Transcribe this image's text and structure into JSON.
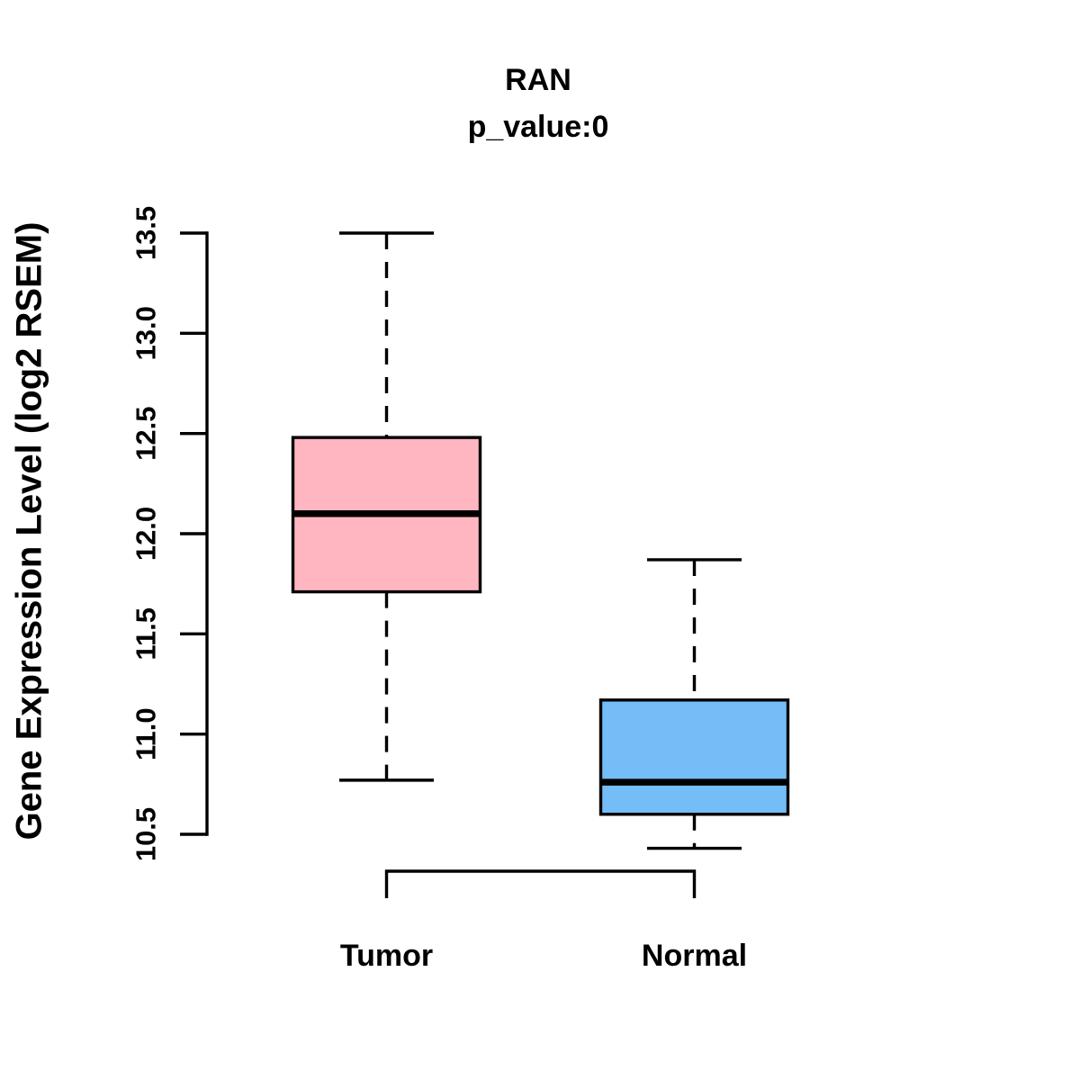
{
  "title": "RAN",
  "subtitle": "p_value:0",
  "y_axis": {
    "label": "Gene Expression Level (log2 RSEM)",
    "range": [
      10.5,
      13.5
    ],
    "ticks": [
      {
        "value": 10.5,
        "label": "10.5"
      },
      {
        "value": 11.0,
        "label": "11.0"
      },
      {
        "value": 11.5,
        "label": "11.5"
      },
      {
        "value": 12.0,
        "label": "12.0"
      },
      {
        "value": 12.5,
        "label": "12.5"
      },
      {
        "value": 13.0,
        "label": "13.0"
      },
      {
        "value": 13.5,
        "label": "13.5"
      }
    ]
  },
  "chart_data": {
    "type": "boxplot",
    "title": "RAN",
    "subtitle": "p_value:0",
    "ylabel": "Gene Expression Level (log2 RSEM)",
    "ylim": [
      10.5,
      13.5
    ],
    "grid": false,
    "legend": false,
    "categories": [
      "Tumor",
      "Normal"
    ],
    "series": [
      {
        "name": "Tumor",
        "color": "#FFB6C1",
        "lower_whisker": 10.77,
        "q1": 11.71,
        "median": 12.1,
        "q3": 12.48,
        "upper_whisker": 13.5
      },
      {
        "name": "Normal",
        "color": "#74BDF7",
        "lower_whisker": 10.43,
        "q1": 10.6,
        "median": 10.76,
        "q3": 11.17,
        "upper_whisker": 11.87
      }
    ],
    "comparison_bracket": {
      "from": "Tumor",
      "to": "Normal"
    }
  },
  "colors": {
    "tumor_box": "#FFB6C1",
    "normal_box": "#74BDF7",
    "stroke": "#000000",
    "background": "#FFFFFF"
  }
}
